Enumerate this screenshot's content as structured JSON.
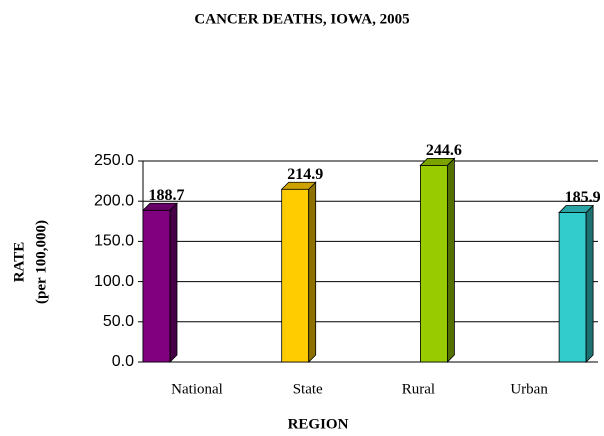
{
  "chart_data": {
    "type": "bar",
    "title": "CANCER DEATHS, IOWA, 2005",
    "ylabel": [
      "RATE",
      "(per 100,000)"
    ],
    "xlabel": "REGION",
    "categories": [
      "National",
      "State",
      "Rural",
      "Urban"
    ],
    "values": [
      188.7,
      214.9,
      244.6,
      185.9
    ],
    "colors": [
      "#800080",
      "#ffcc00",
      "#99cc00",
      "#33cccc"
    ],
    "ylim": [
      0,
      250
    ],
    "yticks": [
      {
        "value": 0,
        "label": "0.0"
      },
      {
        "value": 50,
        "label": "50.0"
      },
      {
        "value": 100,
        "label": "100.0"
      },
      {
        "value": 150,
        "label": "150.0"
      },
      {
        "value": 200,
        "label": "200.0"
      },
      {
        "value": 250,
        "label": "250.0"
      }
    ],
    "grid": true
  }
}
